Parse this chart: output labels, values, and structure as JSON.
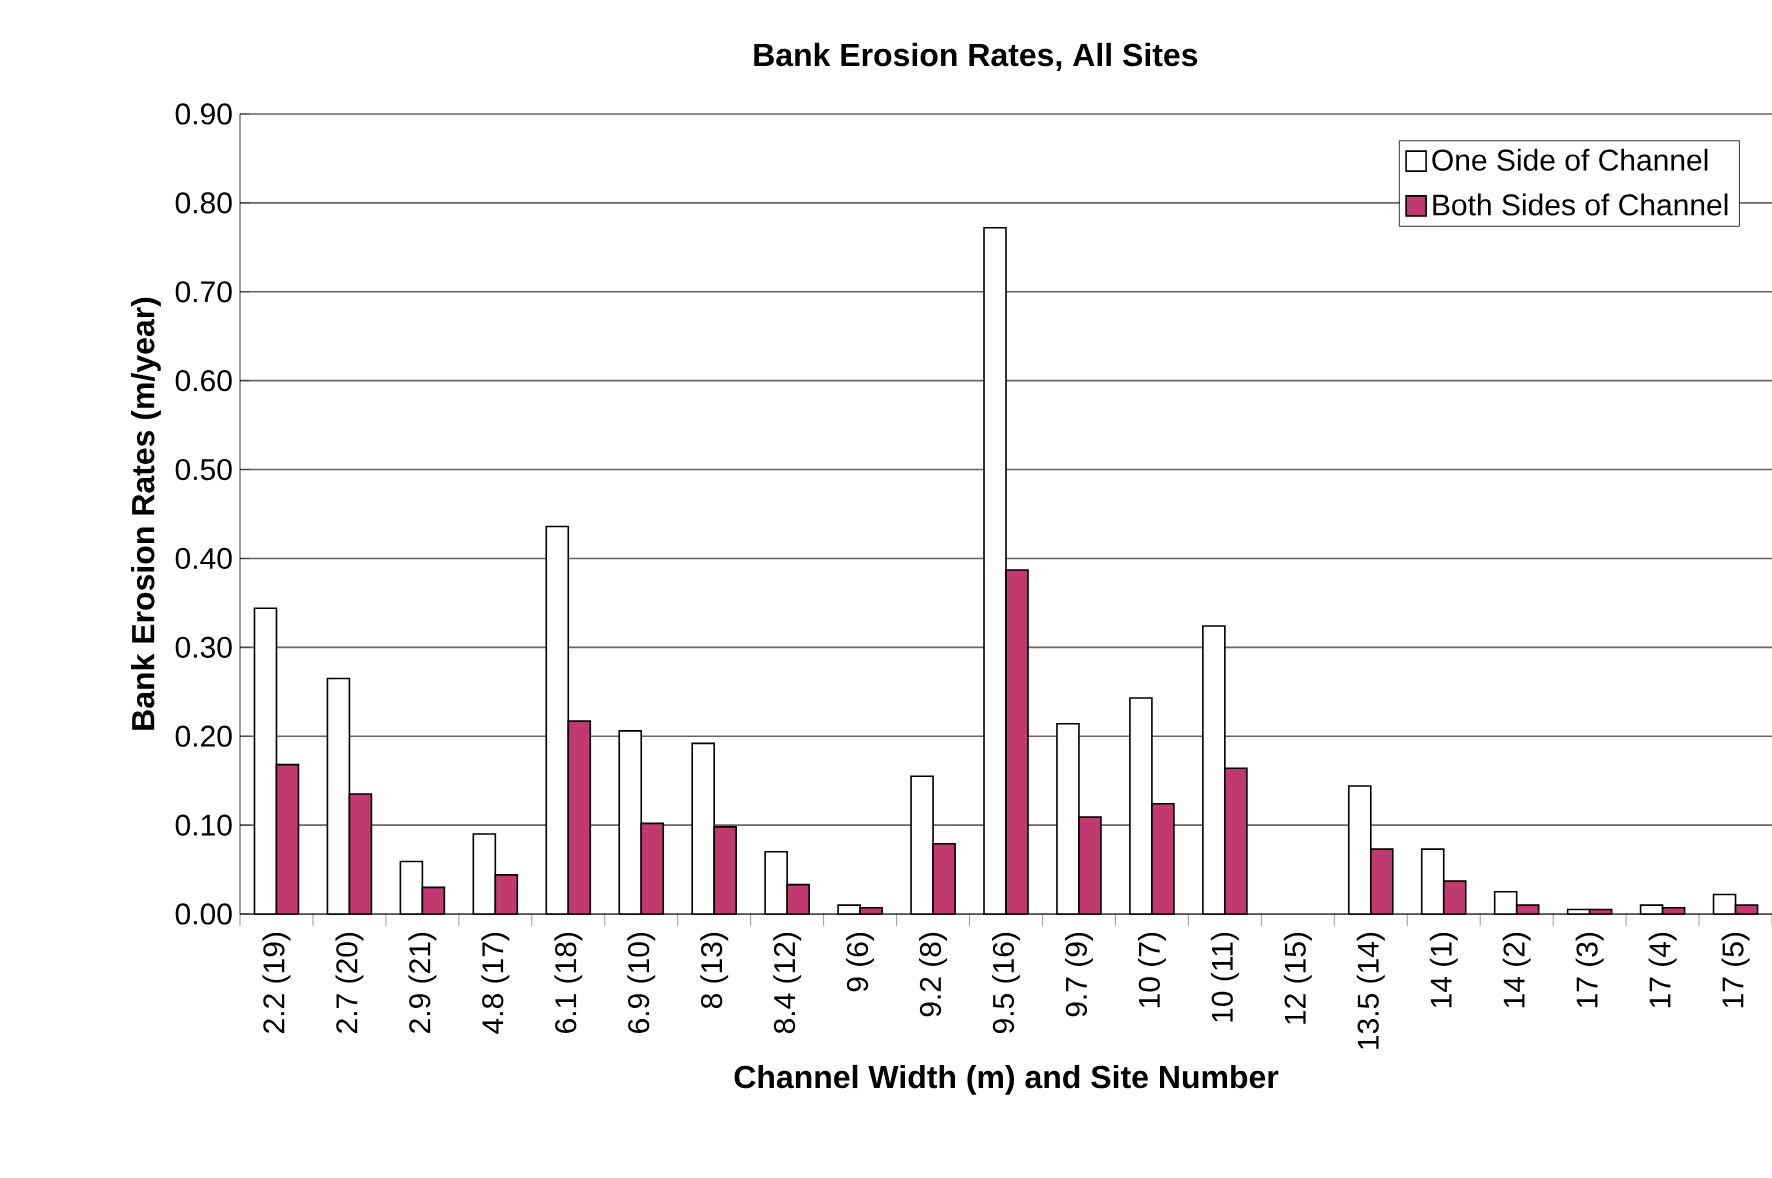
{
  "chart_data": {
    "type": "bar",
    "title": "Bank Erosion Rates,  All Sites",
    "xlabel": "Channel Width (m) and Site Number",
    "ylabel": "Bank Erosion Rates (m/year)",
    "categories": [
      "2.2 (19)",
      "2.7 (20)",
      "2.9 (21)",
      "4.8 (17)",
      "6.1 (18)",
      "6.9 (10)",
      "8 (13)",
      "8.4 (12)",
      "9 (6)",
      "9.2 (8)",
      "9.5 (16)",
      "9.7 (9)",
      "10 (7)",
      "10 (11)",
      "12 (15)",
      "13.5 (14)",
      "14 (1)",
      "14 (2)",
      "17 (3)",
      "17 (4)",
      "17 (5)"
    ],
    "series": [
      {
        "name": "One Side of Channel",
        "color": "#ffffff",
        "values": [
          0.344,
          0.265,
          0.059,
          0.09,
          0.436,
          0.206,
          0.192,
          0.07,
          0.01,
          0.155,
          0.772,
          0.214,
          0.243,
          0.324,
          null,
          0.144,
          0.073,
          0.025,
          0.005,
          0.01,
          0.022
        ]
      },
      {
        "name": "Both Sides of Channel",
        "color": "#c0396f",
        "values": [
          0.168,
          0.135,
          0.03,
          0.044,
          0.217,
          0.102,
          0.098,
          0.033,
          0.007,
          0.079,
          0.387,
          0.109,
          0.124,
          0.164,
          null,
          0.073,
          0.037,
          0.01,
          0.005,
          0.007,
          0.01
        ]
      }
    ],
    "ylim": [
      0,
      0.9
    ],
    "yticks": [
      {
        "value": 0,
        "label": "0.00"
      },
      {
        "value": 0.1,
        "label": "0.10"
      },
      {
        "value": 0.2,
        "label": "0.20"
      },
      {
        "value": 0.3,
        "label": "0.30"
      },
      {
        "value": 0.4,
        "label": "0.40"
      },
      {
        "value": 0.5,
        "label": "0.50"
      },
      {
        "value": 0.6,
        "label": "0.60"
      },
      {
        "value": 0.7,
        "label": "0.70"
      },
      {
        "value": 0.8,
        "label": "0.80"
      },
      {
        "value": 0.9,
        "label": "0.90"
      }
    ],
    "grid": "y",
    "legend": "top right"
  }
}
